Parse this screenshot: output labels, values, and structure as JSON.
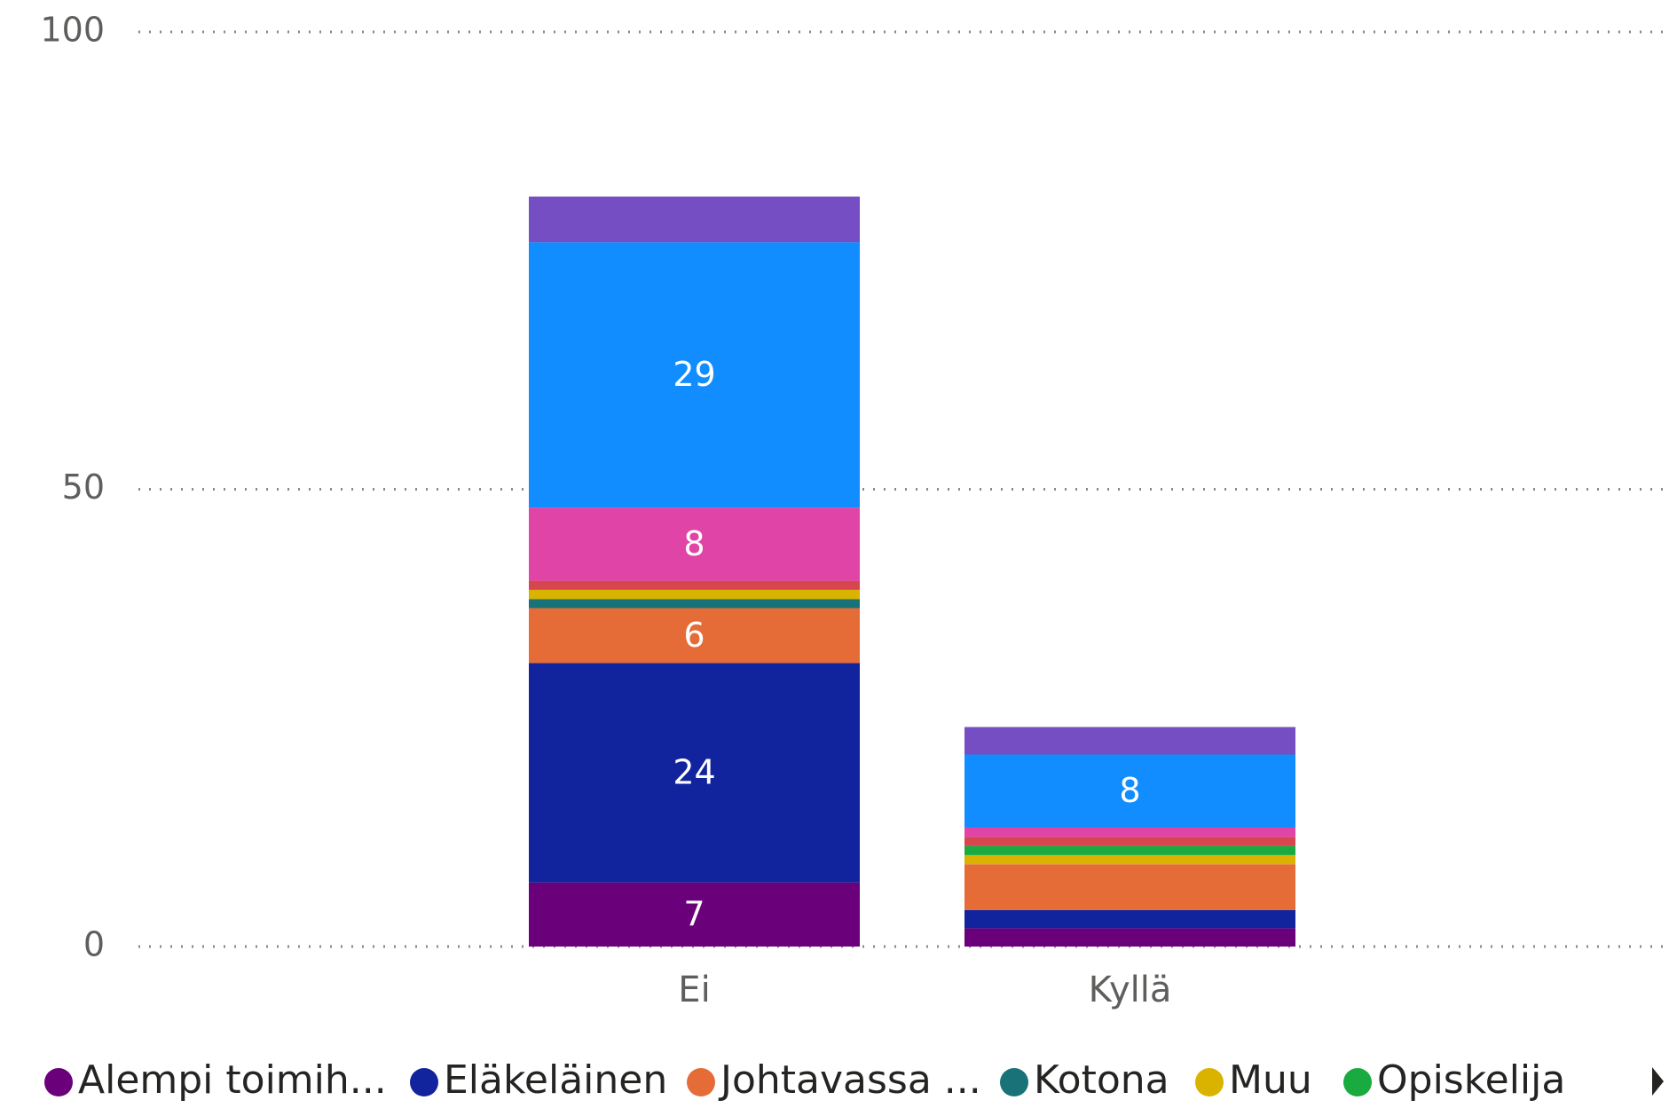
{
  "chart_data": {
    "type": "stacked_bar",
    "categories": [
      "Ei",
      "Kyllä"
    ],
    "series": [
      {
        "name": "Alempi toimih...",
        "color": "#6B007B",
        "values": [
          7,
          2
        ]
      },
      {
        "name": "Eläkeläinen",
        "color": "#12239E",
        "values": [
          24,
          2
        ]
      },
      {
        "name": "Johtavassa ...",
        "color": "#E66C37",
        "values": [
          6,
          5
        ]
      },
      {
        "name": "Kotona",
        "color": "#197278",
        "values": [
          1,
          0
        ]
      },
      {
        "name": "Muu",
        "color": "#D9B300",
        "values": [
          1,
          1
        ]
      },
      {
        "name": "Opiskelija",
        "color": "#1AAB40",
        "values": [
          0,
          1
        ]
      },
      {
        "color": "#D64550",
        "values": [
          1,
          1
        ]
      },
      {
        "color": "#E044A7",
        "values": [
          8,
          1
        ]
      },
      {
        "color": "#118DFF",
        "values": [
          29,
          8
        ]
      },
      {
        "color": "#744EC2",
        "values": [
          5,
          3
        ]
      }
    ],
    "ylim": [
      0,
      100
    ],
    "yticks": [
      0,
      50,
      100
    ],
    "grid": true
  }
}
